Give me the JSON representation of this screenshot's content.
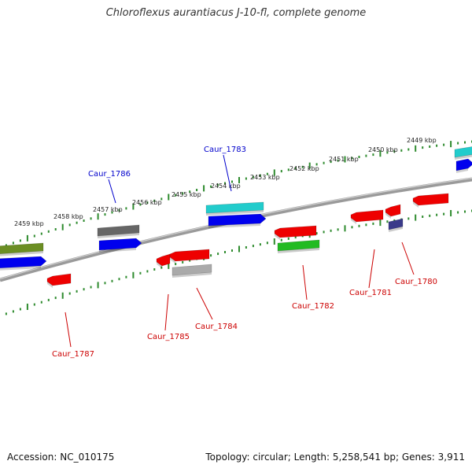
{
  "title": "Chloroflexus aurantiacus J-10-fl, complete genome",
  "footer": {
    "accession": "Accession: NC_010175",
    "summary": "Topology: circular; Length: 5,258,541 bp; Genes: 3,911"
  },
  "scale_labels": [
    "2459 kbp",
    "2458 kbp",
    "2457 kbp",
    "2456 kbp",
    "2455 kbp",
    "2454 kbp",
    "2453 kbp",
    "2452 kbp",
    "2451 kbp",
    "2450 kbp",
    "2449 kbp"
  ],
  "gene_labels": [
    {
      "text": "Caur_1786",
      "color": "#0000cc"
    },
    {
      "text": "Caur_1783",
      "color": "#0000cc"
    },
    {
      "text": "Caur_1787",
      "color": "#cc0000"
    },
    {
      "text": "Caur_1785",
      "color": "#cc0000"
    },
    {
      "text": "Caur_1784",
      "color": "#cc0000"
    },
    {
      "text": "Caur_1782",
      "color": "#cc0000"
    },
    {
      "text": "Caur_1781",
      "color": "#cc0000"
    },
    {
      "text": "Caur_1780",
      "color": "#cc0000"
    }
  ],
  "colors": {
    "backbone": "#888888",
    "tick": "#2e8b2e",
    "forward_label": "#0000cc",
    "reverse_label": "#cc0000"
  }
}
